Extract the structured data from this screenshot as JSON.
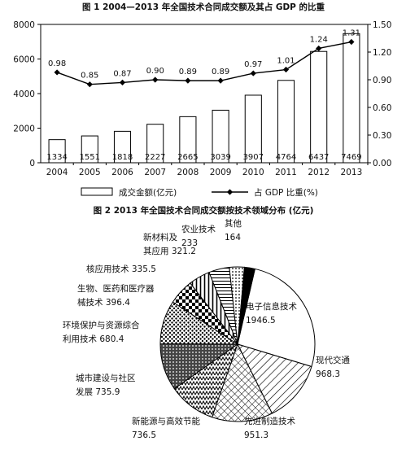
{
  "chart_data": [
    {
      "type": "bar+line",
      "title": "图 1  2004—2013 年全国技术合同成交额及其占 GDP 的比重",
      "categories": [
        "2004",
        "2005",
        "2006",
        "2007",
        "2008",
        "2009",
        "2010",
        "2011",
        "2012",
        "2013"
      ],
      "series": [
        {
          "name": "成交金额(亿元)",
          "type": "bar",
          "axis": "left",
          "values": [
            1334,
            1551,
            1818,
            2227,
            2665,
            3039,
            3907,
            4764,
            6437,
            7469
          ],
          "labels": [
            "1334",
            "1551",
            "1818",
            "2227",
            "2665",
            "3039",
            "3907",
            "4764",
            "6437",
            "7469"
          ]
        },
        {
          "name": "占 GDP 比重(%)",
          "type": "line",
          "axis": "right",
          "values": [
            0.98,
            0.85,
            0.87,
            0.9,
            0.89,
            0.89,
            0.97,
            1.01,
            1.24,
            1.31
          ],
          "labels": [
            "0.98",
            "0.85",
            "0.87",
            "0.90",
            "0.89",
            "0.89",
            "0.97",
            "1.01",
            "1.24",
            "1.31"
          ]
        }
      ],
      "ylim_left": [
        0,
        8000
      ],
      "yticks_left": [
        "0",
        "2000",
        "4000",
        "6000",
        "8000"
      ],
      "ylim_right": [
        0,
        1.5
      ],
      "yticks_right": [
        "0.00",
        "0.30",
        "0.60",
        "0.90",
        "1.20",
        "1.50"
      ],
      "legend_position": "bottom"
    },
    {
      "type": "pie",
      "title": "图 2  2013 年全国技术合同成交额按技术领域分布 (亿元)",
      "slices": [
        {
          "name": "电子信息技术",
          "value": 1946.5,
          "label_lines": [
            "电子信息技术",
            "1946.5"
          ]
        },
        {
          "name": "现代交通",
          "value": 968.3,
          "label_lines": [
            "现代交通",
            "968.3"
          ]
        },
        {
          "name": "先进制造技术",
          "value": 951.3,
          "label_lines": [
            "先进制造技术",
            "951.3"
          ]
        },
        {
          "name": "新能源与高效节能",
          "value": 736.5,
          "label_lines": [
            "新能源与高效节能",
            "736.5"
          ]
        },
        {
          "name": "城市建设与社区发展",
          "value": 735.9,
          "label_lines": [
            "城市建设与社区",
            "发展 735.9"
          ]
        },
        {
          "name": "环境保护与资源综合利用技术",
          "value": 680.4,
          "label_lines": [
            "环境保护与资源综合",
            "利用技术 680.4"
          ]
        },
        {
          "name": "生物、医药和医疗器械技术",
          "value": 396.4,
          "label_lines": [
            "生物、医药和医疗器",
            "械技术 396.4"
          ]
        },
        {
          "name": "核应用技术",
          "value": 335.5,
          "label_lines": [
            "核应用技术 335.5"
          ]
        },
        {
          "name": "新材料及其应用",
          "value": 321.2,
          "label_lines": [
            "新材料及",
            "其应用 321.2"
          ]
        },
        {
          "name": "农业技术",
          "value": 233,
          "label_lines": [
            "农业技术",
            "233"
          ]
        },
        {
          "name": "其他",
          "value": 164,
          "label_lines": [
            "其他",
            "164"
          ]
        }
      ]
    }
  ]
}
